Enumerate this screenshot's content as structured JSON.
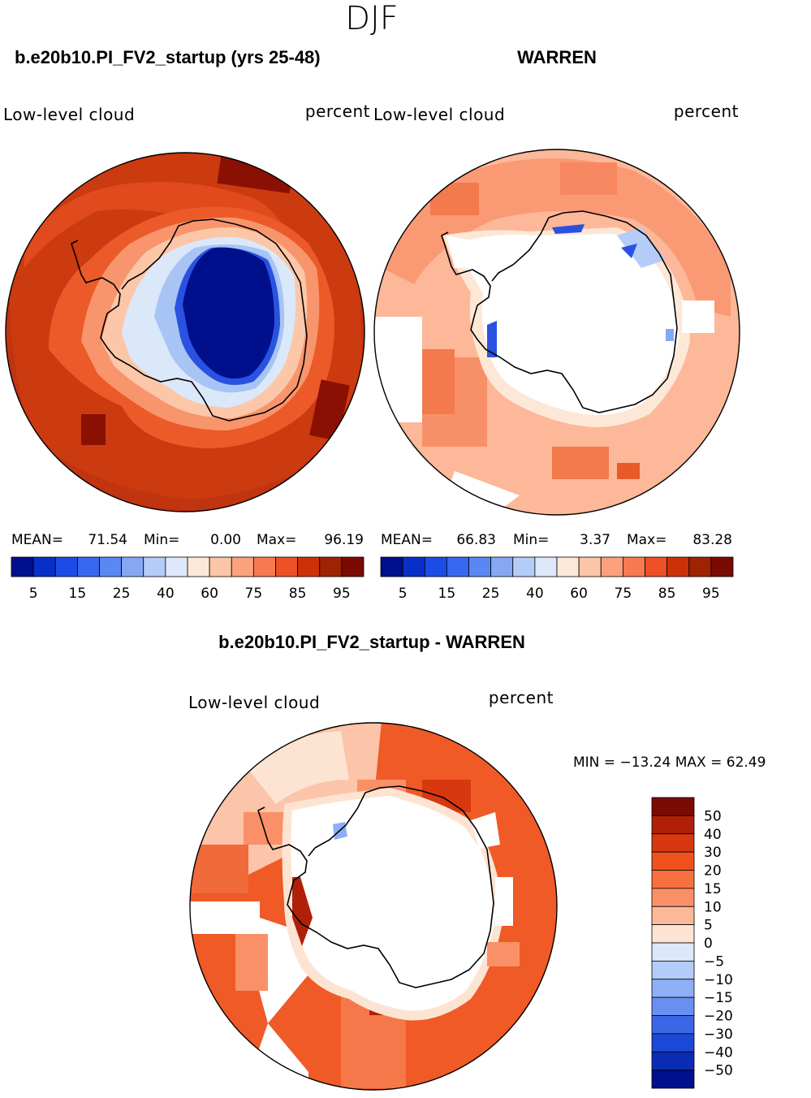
{
  "season": "DJF",
  "panels": [
    {
      "title": "b.e20b10.PI_FV2_startup (yrs 25-48)",
      "variable": "Low-level cloud",
      "units": "percent",
      "mean_label": "MEAN=",
      "mean": "71.54",
      "min_label": "Min=",
      "min": "0.00",
      "max_label": "Max=",
      "max": "96.19"
    },
    {
      "title": "WARREN",
      "variable": "Low-level cloud",
      "units": "percent",
      "mean_label": "MEAN=",
      "mean": "66.83",
      "min_label": "Min=",
      "min": "3.37",
      "max_label": "Max=",
      "max": "83.28"
    }
  ],
  "diff": {
    "title": "b.e20b10.PI_FV2_startup - WARREN",
    "variable": "Low-level cloud",
    "units": "percent",
    "minmax": "MIN = −13.24 MAX =   62.49"
  },
  "chart_data": [
    {
      "type": "heatmap",
      "projection": "south-polar stereographic",
      "title": "b.e20b10.PI_FV2_startup (yrs 25-48)",
      "field": "Low-level cloud",
      "units": "percent",
      "mean": 71.54,
      "min": 0.0,
      "max": 96.19,
      "colorbar": {
        "levels": [
          5,
          10,
          15,
          20,
          25,
          30,
          40,
          50,
          60,
          70,
          75,
          80,
          85,
          90,
          95
        ],
        "tick_labels": [
          "5",
          "15",
          "25",
          "40",
          "60",
          "75",
          "85",
          "95"
        ],
        "colors": [
          "#000f8c",
          "#0830c8",
          "#1c4ce8",
          "#3868f0",
          "#5a88f2",
          "#86a8f4",
          "#b4ccf8",
          "#dde9fb",
          "#fde8d8",
          "#fcc5a8",
          "#fba27d",
          "#f77a50",
          "#ec5024",
          "#cc3208",
          "#a02204",
          "#7a0a02"
        ]
      }
    },
    {
      "type": "heatmap",
      "projection": "south-polar stereographic",
      "title": "WARREN",
      "field": "Low-level cloud",
      "units": "percent",
      "mean": 66.83,
      "min": 3.37,
      "max": 83.28,
      "colorbar": {
        "levels": [
          5,
          10,
          15,
          20,
          25,
          30,
          40,
          50,
          60,
          70,
          75,
          80,
          85,
          90,
          95
        ],
        "tick_labels": [
          "5",
          "15",
          "25",
          "40",
          "60",
          "75",
          "85",
          "95"
        ],
        "colors": [
          "#000f8c",
          "#0830c8",
          "#1c4ce8",
          "#3868f0",
          "#5a88f2",
          "#86a8f4",
          "#b4ccf8",
          "#dde9fb",
          "#fde8d8",
          "#fcc5a8",
          "#fba27d",
          "#f77a50",
          "#ec5024",
          "#cc3208",
          "#a02204",
          "#7a0a02"
        ]
      }
    },
    {
      "type": "heatmap",
      "projection": "south-polar stereographic",
      "title": "b.e20b10.PI_FV2_startup - WARREN",
      "field": "Low-level cloud",
      "units": "percent",
      "min": -13.24,
      "max": 62.49,
      "colorbar": {
        "levels": [
          50,
          40,
          30,
          20,
          15,
          10,
          5,
          0,
          -5,
          -10,
          -15,
          -20,
          -30,
          -40,
          -50
        ],
        "tick_labels": [
          "50",
          "40",
          "30",
          "20",
          "15",
          "10",
          "5",
          "0",
          "−5",
          "−10",
          "−15",
          "−20",
          "−30",
          "−40",
          "−50"
        ],
        "colors": [
          "#7a0a02",
          "#b02008",
          "#d83810",
          "#f0521e",
          "#f77040",
          "#fa9068",
          "#fcb898",
          "#fde4d2",
          "#dce8f9",
          "#b4ccf8",
          "#8eaef5",
          "#6890f0",
          "#3c66e6",
          "#1c48d8",
          "#0a2cb4",
          "#000f8c"
        ]
      }
    }
  ]
}
